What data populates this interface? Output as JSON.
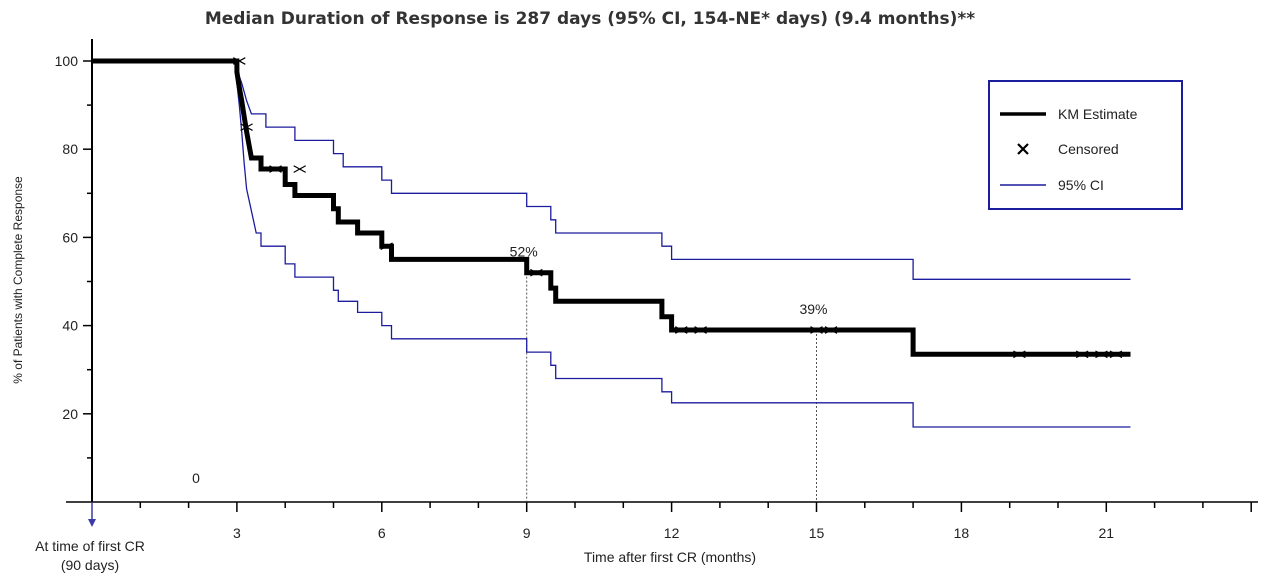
{
  "chart_data": {
    "type": "line",
    "title": "Median Duration of Response is 287 days (95% CI, 154-NE* days) (9.4 months)**",
    "xlabel": "Time after first CR (months)",
    "ylabel": "% of Patients with Complete Response",
    "xlim": [
      0,
      24
    ],
    "ylim": [
      0,
      100
    ],
    "x_ticks": [
      3,
      6,
      9,
      12,
      15,
      18,
      21
    ],
    "y_ticks": [
      20,
      40,
      60,
      80,
      100
    ],
    "origin_label": "At time of first CR",
    "origin_sublabel": "(90 days)",
    "zero_label": "0",
    "grid": false,
    "legend_position": "top-right",
    "legend": [
      {
        "label": "KM Estimate",
        "marker": "line",
        "color": "#000000"
      },
      {
        "label": "Censored",
        "marker": "x",
        "color": "#000000"
      },
      {
        "label": "95% CI",
        "marker": "line",
        "color": "#1c1c9e"
      }
    ],
    "annotations": [
      {
        "text": "52%",
        "x": 9,
        "y": 52
      },
      {
        "text": "39%",
        "x": 15,
        "y": 39
      }
    ],
    "series": [
      {
        "name": "KM Estimate",
        "color": "#000000",
        "step": true,
        "points": [
          [
            0,
            100
          ],
          [
            3.0,
            100
          ],
          [
            3.0,
            97.5
          ],
          [
            3.05,
            94
          ],
          [
            3.1,
            91
          ],
          [
            3.15,
            87.5
          ],
          [
            3.2,
            84
          ],
          [
            3.25,
            81
          ],
          [
            3.3,
            78
          ],
          [
            3.5,
            78
          ],
          [
            3.5,
            75.5
          ],
          [
            4.0,
            75.5
          ],
          [
            4.0,
            72
          ],
          [
            4.2,
            72
          ],
          [
            4.2,
            69.5
          ],
          [
            5.0,
            69.5
          ],
          [
            5.0,
            66.5
          ],
          [
            5.1,
            66.5
          ],
          [
            5.1,
            63.5
          ],
          [
            5.5,
            63.5
          ],
          [
            5.5,
            61
          ],
          [
            6.0,
            61
          ],
          [
            6.0,
            58
          ],
          [
            6.2,
            58
          ],
          [
            6.2,
            55
          ],
          [
            9.0,
            55
          ],
          [
            9.0,
            52
          ],
          [
            9.5,
            52
          ],
          [
            9.5,
            48.5
          ],
          [
            9.6,
            48.5
          ],
          [
            9.6,
            45.5
          ],
          [
            11.8,
            45.5
          ],
          [
            11.8,
            42
          ],
          [
            12.0,
            42
          ],
          [
            12.0,
            39
          ],
          [
            17.0,
            39
          ],
          [
            17.0,
            33.5
          ],
          [
            21.5,
            33.5
          ]
        ]
      },
      {
        "name": "95% CI upper",
        "color": "#1c1c9e",
        "step": true,
        "points": [
          [
            0,
            100
          ],
          [
            3.0,
            100
          ],
          [
            3.0,
            98
          ],
          [
            3.1,
            95
          ],
          [
            3.2,
            91
          ],
          [
            3.3,
            88
          ],
          [
            3.6,
            88
          ],
          [
            3.6,
            85
          ],
          [
            4.2,
            85
          ],
          [
            4.2,
            82
          ],
          [
            5.0,
            82
          ],
          [
            5.0,
            79
          ],
          [
            5.2,
            79
          ],
          [
            5.2,
            76
          ],
          [
            6.0,
            76
          ],
          [
            6.0,
            73
          ],
          [
            6.2,
            73
          ],
          [
            6.2,
            70
          ],
          [
            9.0,
            70
          ],
          [
            9.0,
            67
          ],
          [
            9.5,
            67
          ],
          [
            9.5,
            64
          ],
          [
            9.6,
            64
          ],
          [
            9.6,
            61
          ],
          [
            11.8,
            61
          ],
          [
            11.8,
            58
          ],
          [
            12.0,
            58
          ],
          [
            12.0,
            55
          ],
          [
            17.0,
            55
          ],
          [
            17.0,
            50.5
          ],
          [
            21.5,
            50.5
          ]
        ]
      },
      {
        "name": "95% CI lower",
        "color": "#1c1c9e",
        "step": true,
        "points": [
          [
            0,
            100
          ],
          [
            3.0,
            100
          ],
          [
            3.0,
            95
          ],
          [
            3.05,
            90
          ],
          [
            3.1,
            84
          ],
          [
            3.15,
            77
          ],
          [
            3.2,
            71
          ],
          [
            3.3,
            66
          ],
          [
            3.4,
            61
          ],
          [
            3.5,
            61
          ],
          [
            3.5,
            58
          ],
          [
            4.0,
            58
          ],
          [
            4.0,
            54
          ],
          [
            4.2,
            54
          ],
          [
            4.2,
            51
          ],
          [
            5.0,
            51
          ],
          [
            5.0,
            48
          ],
          [
            5.1,
            48
          ],
          [
            5.1,
            45.5
          ],
          [
            5.5,
            45.5
          ],
          [
            5.5,
            43
          ],
          [
            6.0,
            43
          ],
          [
            6.0,
            40
          ],
          [
            6.2,
            40
          ],
          [
            6.2,
            37
          ],
          [
            9.0,
            37
          ],
          [
            9.0,
            34
          ],
          [
            9.5,
            34
          ],
          [
            9.5,
            31
          ],
          [
            9.6,
            31
          ],
          [
            9.6,
            28
          ],
          [
            11.8,
            28
          ],
          [
            11.8,
            25
          ],
          [
            12.0,
            25
          ],
          [
            12.0,
            22.5
          ],
          [
            17.0,
            22.5
          ],
          [
            17.0,
            17
          ],
          [
            21.5,
            17
          ]
        ]
      }
    ],
    "censored": [
      [
        3.05,
        100
      ],
      [
        3.2,
        85
      ],
      [
        3.8,
        75.5
      ],
      [
        4.3,
        75.5
      ],
      [
        6.1,
        58
      ],
      [
        9.2,
        52
      ],
      [
        12.2,
        39
      ],
      [
        12.6,
        39
      ],
      [
        15.0,
        39
      ],
      [
        15.3,
        39
      ],
      [
        19.2,
        33.5
      ],
      [
        20.5,
        33.5
      ],
      [
        20.9,
        33.5
      ],
      [
        21.2,
        33.5
      ]
    ]
  }
}
